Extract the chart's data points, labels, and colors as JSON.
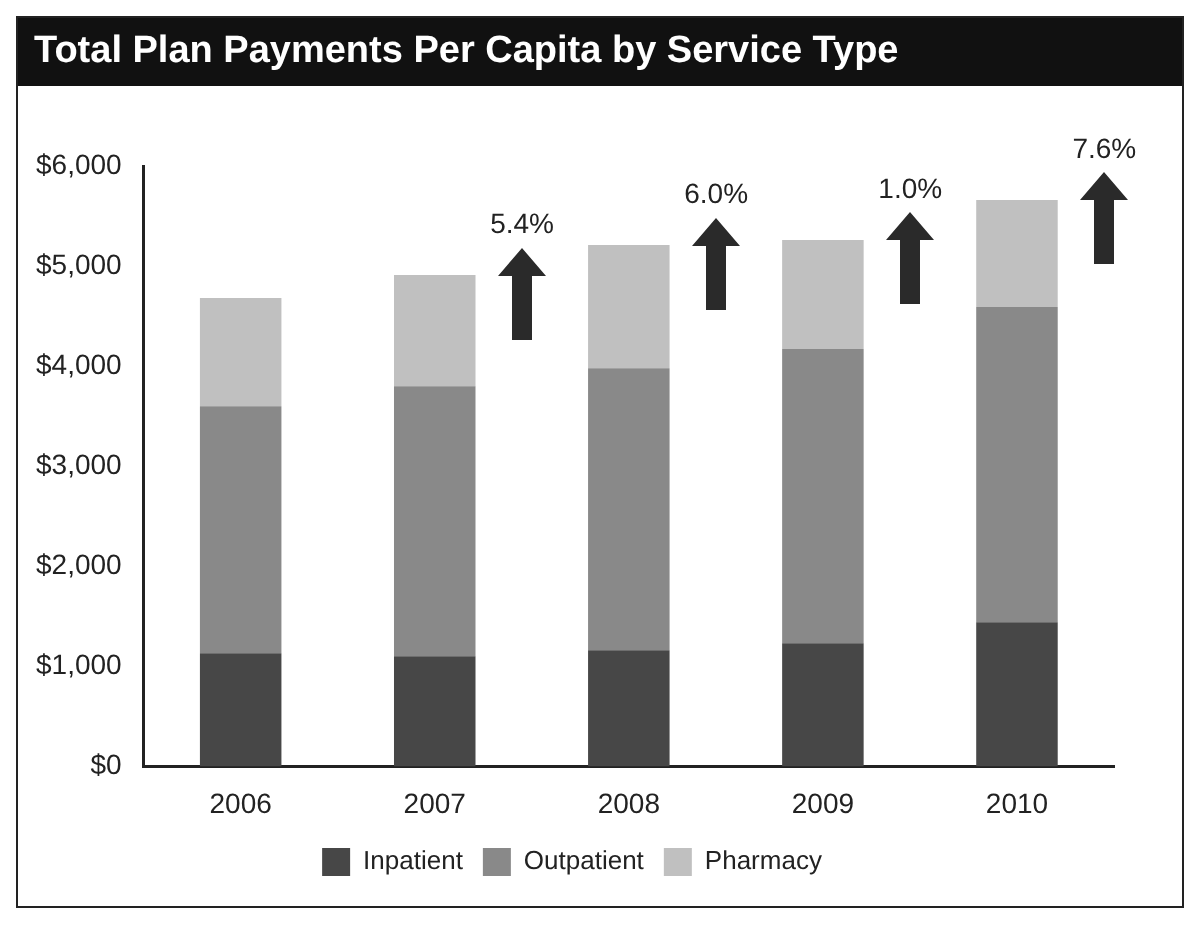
{
  "chart_data": {
    "type": "bar",
    "title": "Total Plan Payments Per Capita by Service Type",
    "categories": [
      "2006",
      "2007",
      "2008",
      "2009",
      "2010"
    ],
    "series": [
      {
        "name": "Inpatient",
        "color": "#474747",
        "values": [
          1130,
          1100,
          1160,
          1230,
          1440
        ]
      },
      {
        "name": "Outpatient",
        "color": "#898989",
        "values": [
          2470,
          2700,
          2820,
          2940,
          3150
        ]
      },
      {
        "name": "Pharmacy",
        "color": "#c0c0c0",
        "values": [
          1080,
          1110,
          1230,
          1090,
          1070
        ]
      }
    ],
    "stacked": true,
    "ylim": [
      0,
      6000
    ],
    "yticks": [
      {
        "value": 0,
        "label": "$0"
      },
      {
        "value": 1000,
        "label": "$1,000"
      },
      {
        "value": 2000,
        "label": "$2,000"
      },
      {
        "value": 3000,
        "label": "$3,000"
      },
      {
        "value": 4000,
        "label": "$4,000"
      },
      {
        "value": 5000,
        "label": "$5,000"
      },
      {
        "value": 6000,
        "label": "$6,000"
      }
    ],
    "grid": false,
    "legend": "bottom",
    "annotations": [
      "5.4%",
      "6.0%",
      "1.0%",
      "7.6%"
    ]
  }
}
